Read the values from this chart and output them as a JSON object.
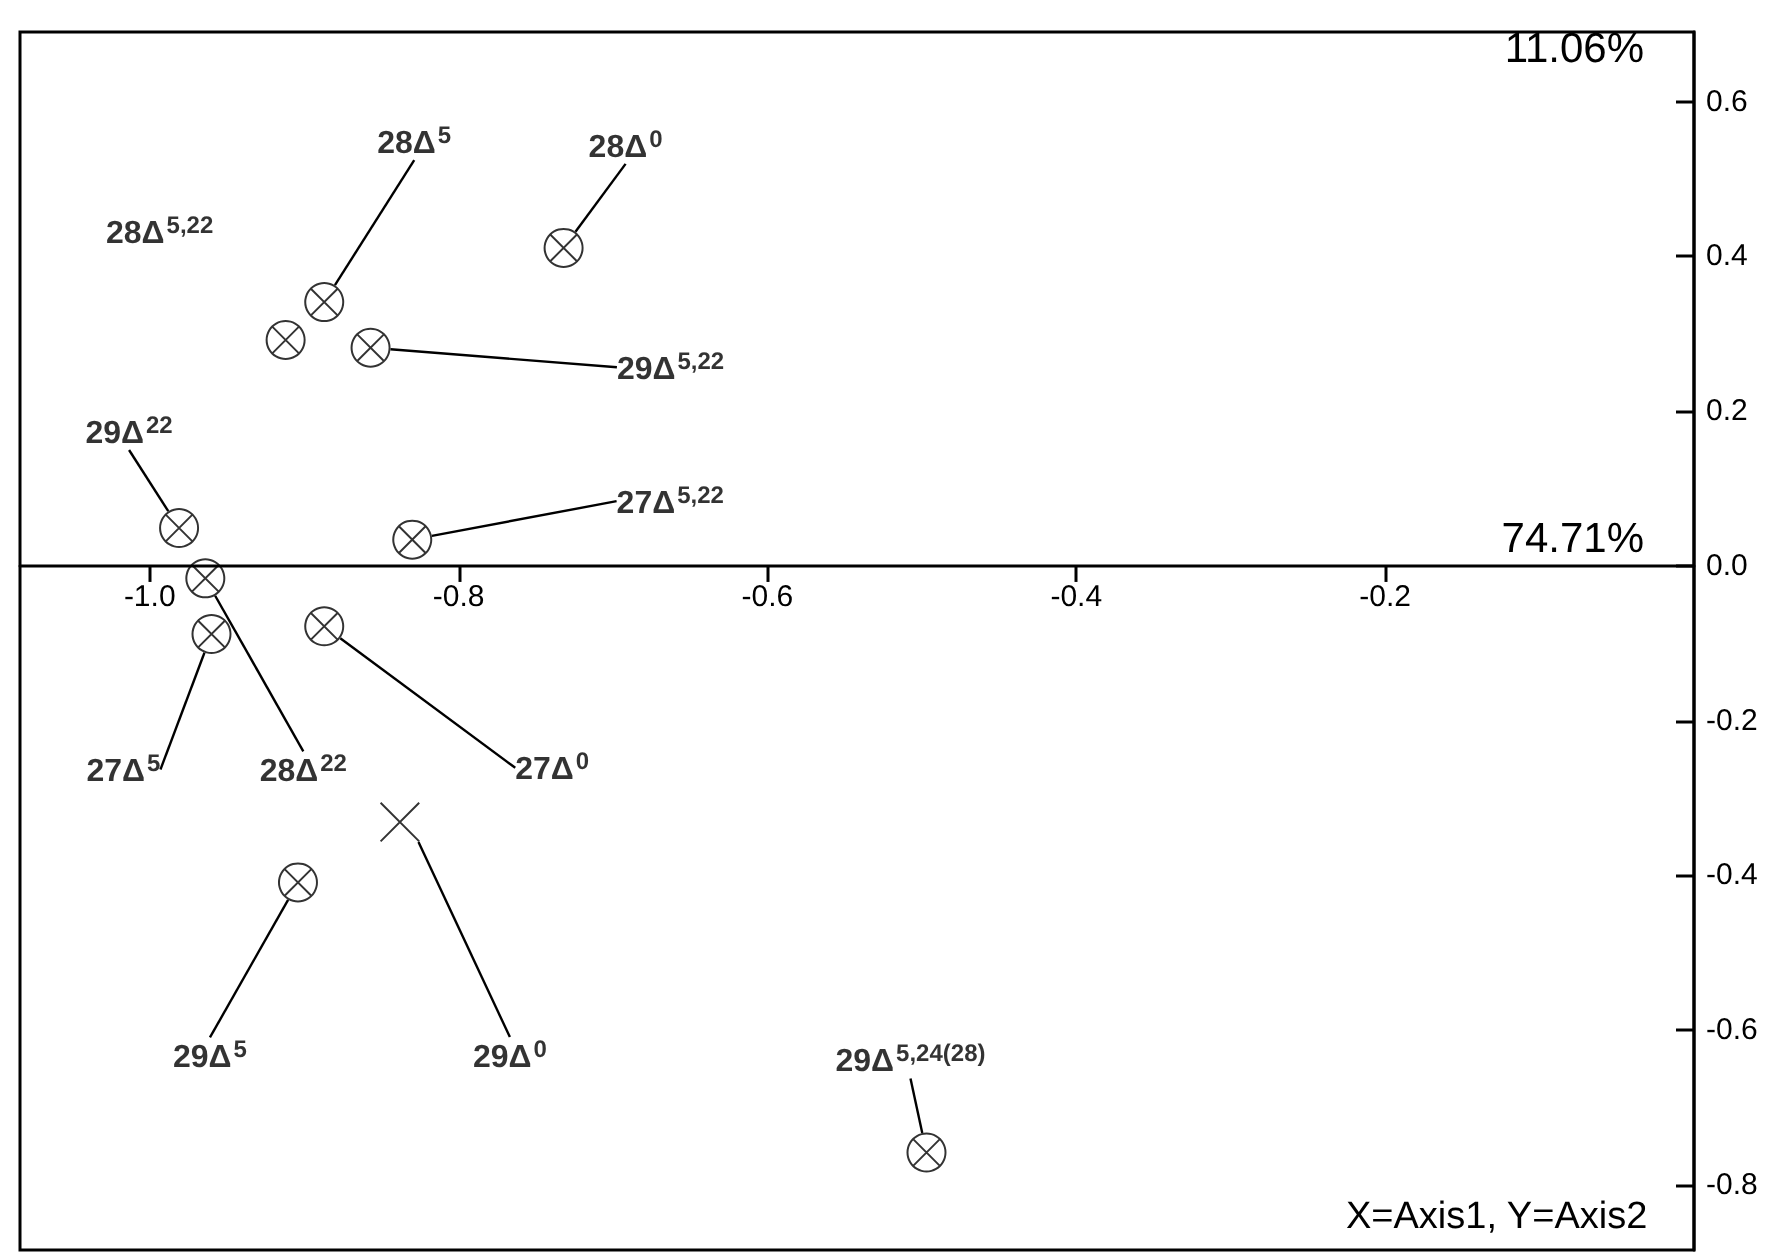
{
  "chart_data": {
    "type": "scatter",
    "xlim": [
      -1.084,
      0.0
    ],
    "ylim": [
      -0.884,
      0.69
    ],
    "xticks": [
      {
        "value": -1.0,
        "label": "-1.0"
      },
      {
        "value": -0.8,
        "label": "-0.8"
      },
      {
        "value": -0.6,
        "label": "-0.6"
      },
      {
        "value": -0.4,
        "label": "-0.4"
      },
      {
        "value": -0.2,
        "label": "-0.2"
      }
    ],
    "yticks": [
      {
        "value": 0.6,
        "label": "0.6"
      },
      {
        "value": 0.4,
        "label": "0.4"
      },
      {
        "value": 0.2,
        "label": "0.2"
      },
      {
        "value": 0.0,
        "label": "0.0"
      },
      {
        "value": -0.2,
        "label": "-0.2"
      },
      {
        "value": -0.4,
        "label": "-0.4"
      },
      {
        "value": -0.6,
        "label": "-0.6"
      },
      {
        "value": -0.8,
        "label": "-0.8"
      }
    ],
    "series": [
      {
        "color": "#000000",
        "marker": "circle",
        "x": [
          -0.732,
          -0.887,
          -0.912,
          -0.857,
          -0.981,
          -0.83,
          -0.964,
          -0.96,
          -0.887,
          -0.904,
          -0.497
        ],
        "values": [
          0.411,
          0.341,
          0.292,
          0.282,
          0.049,
          0.034,
          -0.016,
          -0.088,
          -0.078,
          -0.409,
          -0.758
        ],
        "value_labels": [
          "28Δ$^{0}$",
          "28Δ$^{5}$",
          "28Δ$^{5,22}$",
          "29Δ$^{5,22}$",
          "29Δ$^{22}$",
          "27Δ$^{5,22}$",
          "28Δ$^{22}$",
          "27Δ$^{5}$",
          "27Δ$^{0}$",
          "29Δ$^{5}$",
          "29Δ$^{5,24(28)}$"
        ]
      },
      {
        "color": "#000000",
        "marker": "cross",
        "x": [
          -0.838
        ],
        "values": [
          -0.331
        ],
        "value_labels": [
          "29Δ$^{0}$"
        ]
      }
    ],
    "annotations": [
      "11.06%",
      "74.71%",
      "X=Axis1, Y=Axis2"
    ]
  }
}
